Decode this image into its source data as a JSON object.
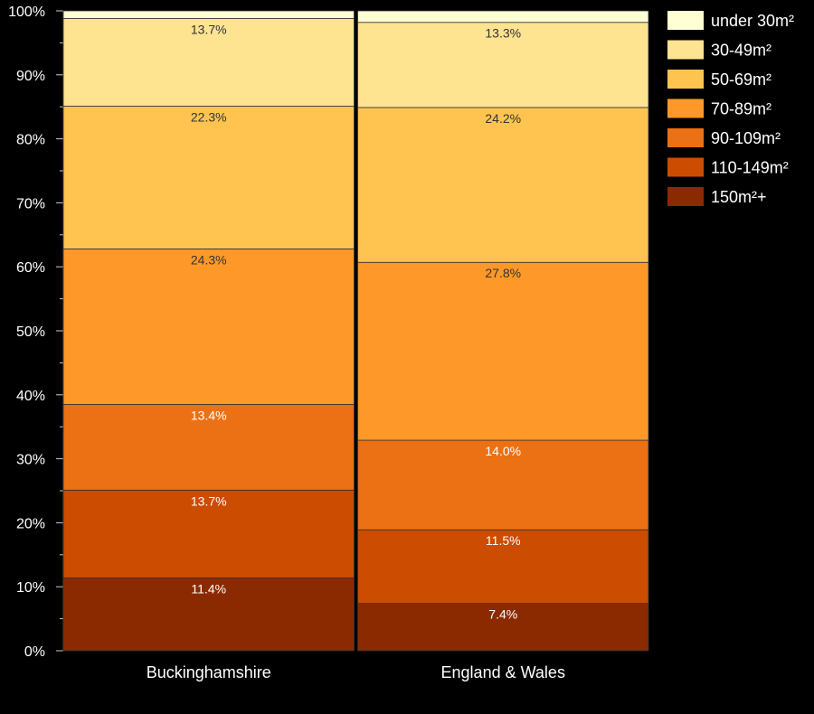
{
  "chart_data": {
    "type": "bar",
    "stacked": true,
    "categories": [
      "Buckinghamshire",
      "England & Wales"
    ],
    "series": [
      {
        "name": "150m²+",
        "values": [
          11.4,
          7.4
        ],
        "color": "#8B2A00"
      },
      {
        "name": "110-149m²",
        "values": [
          13.7,
          11.5
        ],
        "color": "#CC4C02"
      },
      {
        "name": "90-109m²",
        "values": [
          13.4,
          14.0
        ],
        "color": "#EC7014"
      },
      {
        "name": "70-89m²",
        "values": [
          24.3,
          27.8
        ],
        "color": "#FE9929"
      },
      {
        "name": "50-69m²",
        "values": [
          22.3,
          24.2
        ],
        "color": "#FEC44F"
      },
      {
        "name": "30-49m²",
        "values": [
          13.7,
          13.3
        ],
        "color": "#FEE391"
      },
      {
        "name": "under 30m²",
        "values": [
          1.2,
          1.8
        ],
        "color": "#FFFFD4"
      }
    ],
    "data_labels": [
      [
        "11.4%",
        "13.7%",
        "13.4%",
        "24.3%",
        "22.3%",
        "13.7%",
        ""
      ],
      [
        "7.4%",
        "11.5%",
        "14.0%",
        "27.8%",
        "24.2%",
        "13.3%",
        ""
      ]
    ],
    "label_colors": [
      "#ffffff",
      "#ffffff",
      "#ffffff",
      "#333333",
      "#333333",
      "#333333",
      "#333333"
    ],
    "y_ticks": [
      "0%",
      "10%",
      "20%",
      "30%",
      "40%",
      "50%",
      "60%",
      "70%",
      "80%",
      "90%",
      "100%"
    ],
    "ylim": [
      0,
      100
    ],
    "legend_order": [
      "under 30m²",
      "30-49m²",
      "50-69m²",
      "70-89m²",
      "90-109m²",
      "110-149m²",
      "150m²+"
    ],
    "legend_position": "top-right",
    "title": "",
    "xlabel": "",
    "ylabel": ""
  }
}
